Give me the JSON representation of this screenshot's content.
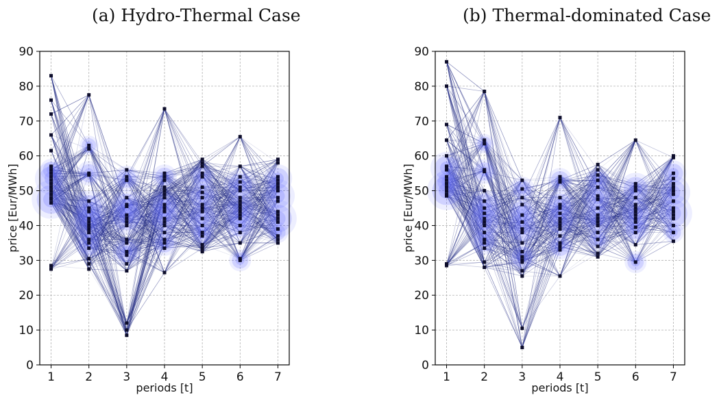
{
  "colors": {
    "edge": "#1a237e",
    "node": "#0d0d2b",
    "bubble": "#6b73ff",
    "grid": "#b0b0b0",
    "axis": "#000000"
  },
  "chart_data": [
    {
      "type": "scatter",
      "title": "(a) Hydro-Thermal Case",
      "xlabel": "periods [t]",
      "ylabel": "price [Eur/MWh]",
      "xlim": [
        0.7,
        7.3
      ],
      "ylim": [
        0,
        90
      ],
      "x_ticks": [
        1,
        2,
        3,
        4,
        5,
        6,
        7
      ],
      "y_ticks": [
        0,
        10,
        20,
        30,
        40,
        50,
        60,
        70,
        80,
        90
      ],
      "grid": true,
      "x": [
        1,
        2,
        3,
        4,
        5,
        6,
        7
      ],
      "node_values": [
        [
          27.5,
          28.5,
          46.5,
          47.5,
          48,
          49,
          50,
          51,
          52,
          53,
          54,
          55,
          56,
          57,
          61.5,
          66,
          72,
          76,
          83
        ],
        [
          27.5,
          29,
          30.5,
          33.5,
          35,
          36,
          38,
          39,
          40,
          41,
          42,
          44,
          45,
          47,
          54.5,
          55,
          62,
          63,
          77.5
        ],
        [
          8.5,
          10,
          12,
          27,
          29,
          31.5,
          32.5,
          35,
          36,
          40,
          41,
          42,
          43,
          45.5,
          46,
          48,
          53,
          54,
          56
        ],
        [
          26.5,
          33.5,
          35,
          36,
          38,
          40,
          41,
          42,
          44,
          45,
          46,
          48,
          49,
          50,
          51,
          53,
          54,
          55,
          73.5
        ],
        [
          32.5,
          33.5,
          34.5,
          37,
          38,
          40,
          42,
          44,
          45,
          46,
          48,
          49.5,
          51,
          54,
          55,
          57,
          58,
          59
        ],
        [
          30,
          30.5,
          35,
          38,
          40,
          42,
          43,
          44,
          45,
          46,
          47,
          48,
          50,
          51,
          52.5,
          54,
          57,
          65.5
        ],
        [
          35,
          36,
          37,
          39,
          41,
          42,
          43,
          44,
          47,
          48,
          50,
          51,
          52,
          53,
          54,
          58,
          59
        ]
      ],
      "bubbles": [
        [
          {
            "y": 47.5,
            "w": 1.0
          },
          {
            "y": 53.5,
            "w": 0.75
          },
          {
            "y": 56,
            "w": 0.35
          }
        ],
        [
          {
            "y": 40.5,
            "w": 0.95
          },
          {
            "y": 45,
            "w": 0.85
          },
          {
            "y": 34.5,
            "w": 0.55
          },
          {
            "y": 55,
            "w": 0.45
          },
          {
            "y": 63,
            "w": 0.25
          }
        ],
        [
          {
            "y": 42.5,
            "w": 0.9
          },
          {
            "y": 46,
            "w": 0.65
          },
          {
            "y": 32.5,
            "w": 0.6
          },
          {
            "y": 53.5,
            "w": 0.5
          }
        ],
        [
          {
            "y": 42,
            "w": 0.85
          },
          {
            "y": 46,
            "w": 0.7
          },
          {
            "y": 35,
            "w": 0.5
          },
          {
            "y": 54,
            "w": 0.45
          }
        ],
        [
          {
            "y": 42,
            "w": 0.85
          },
          {
            "y": 48.5,
            "w": 0.75
          },
          {
            "y": 54,
            "w": 0.45
          },
          {
            "y": 37.5,
            "w": 0.4
          }
        ],
        [
          {
            "y": 44.5,
            "w": 0.9
          },
          {
            "y": 51.5,
            "w": 0.75
          },
          {
            "y": 40,
            "w": 0.65
          },
          {
            "y": 30,
            "w": 0.35
          }
        ],
        [
          {
            "y": 42,
            "w": 0.95
          },
          {
            "y": 48.5,
            "w": 0.8
          },
          {
            "y": 53.5,
            "w": 0.6
          },
          {
            "y": 38,
            "w": 0.3
          }
        ]
      ]
    },
    {
      "type": "scatter",
      "title": "(b) Thermal-dominated Case",
      "xlabel": "periods [t]",
      "ylabel": "price [Eur/MWh]",
      "xlim": [
        0.7,
        7.3
      ],
      "ylim": [
        0,
        90
      ],
      "x_ticks": [
        1,
        2,
        3,
        4,
        5,
        6,
        7
      ],
      "y_ticks": [
        0,
        10,
        20,
        30,
        40,
        50,
        60,
        70,
        80,
        90
      ],
      "grid": true,
      "x": [
        1,
        2,
        3,
        4,
        5,
        6,
        7
      ],
      "node_values": [
        [
          28.5,
          29,
          48.5,
          49,
          50,
          51,
          52,
          53,
          54,
          56,
          57,
          60,
          64.5,
          69,
          80,
          87
        ],
        [
          28,
          29.5,
          33.5,
          35,
          36,
          38,
          40,
          41,
          42,
          43.5,
          45,
          47,
          50,
          55.5,
          56,
          63.5,
          64.5,
          78.5
        ],
        [
          5,
          10.5,
          25.5,
          27,
          29.5,
          30,
          31,
          32.5,
          35,
          38,
          39,
          41,
          43,
          46,
          48,
          50.5,
          53
        ],
        [
          25.5,
          33,
          34,
          35,
          37,
          39,
          40,
          41,
          42,
          43.5,
          45,
          46,
          48,
          52.5,
          53,
          54,
          71
        ],
        [
          31,
          32,
          34,
          36,
          38,
          40,
          41,
          42,
          43,
          45,
          47.5,
          48.5,
          51,
          53,
          54.5,
          56,
          57.5
        ],
        [
          29.5,
          34.5,
          38,
          39.5,
          41,
          42,
          43,
          44,
          45,
          46,
          48,
          50,
          51,
          52,
          64.5
        ],
        [
          35.5,
          38,
          40,
          42,
          43,
          44,
          45,
          47,
          49,
          50,
          51,
          52,
          53.5,
          55,
          59.5,
          60
        ]
      ],
      "bubbles": [
        [
          {
            "y": 50,
            "w": 1.0
          },
          {
            "y": 56.5,
            "w": 0.75
          },
          {
            "y": 52.5,
            "w": 0.45
          }
        ],
        [
          {
            "y": 41,
            "w": 0.95
          },
          {
            "y": 45.5,
            "w": 0.8
          },
          {
            "y": 35.5,
            "w": 0.55
          },
          {
            "y": 55.5,
            "w": 0.45
          },
          {
            "y": 63.5,
            "w": 0.25
          }
        ],
        [
          {
            "y": 39.5,
            "w": 0.9
          },
          {
            "y": 44,
            "w": 0.6
          },
          {
            "y": 31,
            "w": 0.6
          },
          {
            "y": 50.5,
            "w": 0.45
          }
        ],
        [
          {
            "y": 41.5,
            "w": 0.85
          },
          {
            "y": 46,
            "w": 0.65
          },
          {
            "y": 34,
            "w": 0.5
          },
          {
            "y": 53,
            "w": 0.45
          }
        ],
        [
          {
            "y": 42,
            "w": 0.85
          },
          {
            "y": 48,
            "w": 0.75
          },
          {
            "y": 53,
            "w": 0.45
          },
          {
            "y": 36,
            "w": 0.35
          }
        ],
        [
          {
            "y": 43.5,
            "w": 0.9
          },
          {
            "y": 50.5,
            "w": 0.75
          },
          {
            "y": 39,
            "w": 0.55
          },
          {
            "y": 29.5,
            "w": 0.35
          }
        ],
        [
          {
            "y": 43.5,
            "w": 0.95
          },
          {
            "y": 49.5,
            "w": 0.8
          },
          {
            "y": 55,
            "w": 0.5
          },
          {
            "y": 38,
            "w": 0.3
          }
        ]
      ]
    }
  ]
}
